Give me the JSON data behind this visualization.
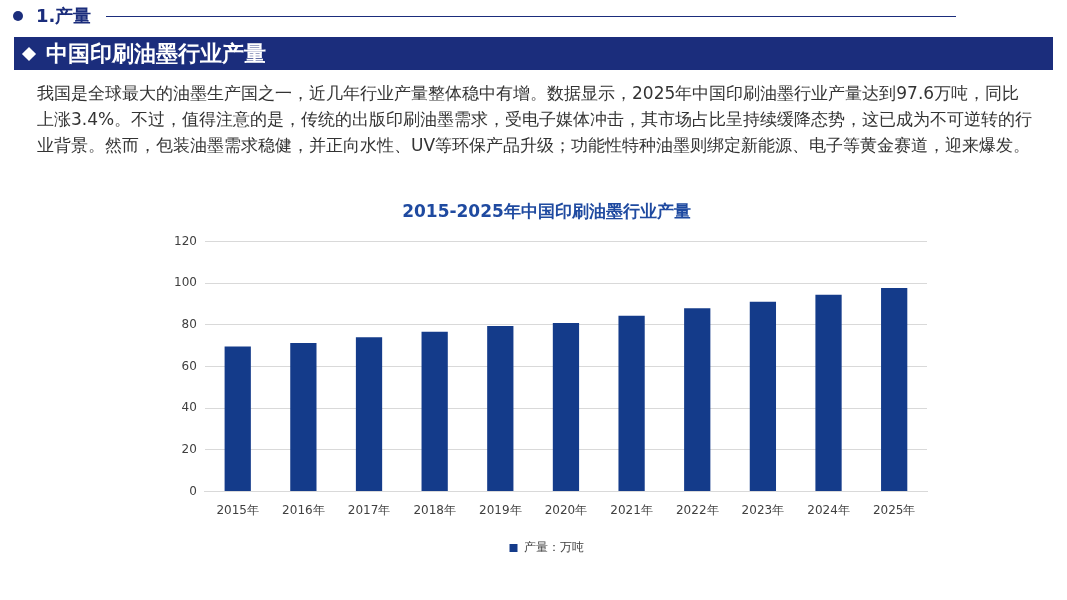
{
  "chart_data": {
    "type": "bar",
    "title": "2015-2025年中国印刷油墨行业产量",
    "categories": [
      "2015年",
      "2016年",
      "2017年",
      "2018年",
      "2019年",
      "2020年",
      "2021年",
      "2022年",
      "2023年",
      "2024年",
      "2025年"
    ],
    "series": [
      {
        "name": "产量：万吨",
        "color": "#143b8a",
        "values": [
          69.6,
          71.3,
          74,
          76.7,
          79.4,
          80.9,
          84.4,
          87.9,
          91,
          94.4,
          97.6
        ]
      }
    ],
    "ylim": [
      0,
      120
    ],
    "yticks": [
      0,
      20,
      40,
      60,
      80,
      100,
      120
    ],
    "grid": "y",
    "legend": "bottom",
    "annotations": [
      "1.产量",
      "中国印刷油墨行业产量",
      "我国是全球最大的油墨生产国之一，近几年行业产量整体稳中有增。数据显示，2025年中国印刷油墨行业产量达到97.6万吨，同比上涨3.4%。不过，值得注意的是，传统的出版印刷油墨需求，受电子媒体冲击，其市场占比呈持续缓降态势，这已成为不可逆转的行业背景。然而，包装油墨需求稳健，并正向水性、UV等环保产品升级；功能性特种油墨则绑定新能源、电子等黄金赛道，迎来爆发。"
    ]
  }
}
